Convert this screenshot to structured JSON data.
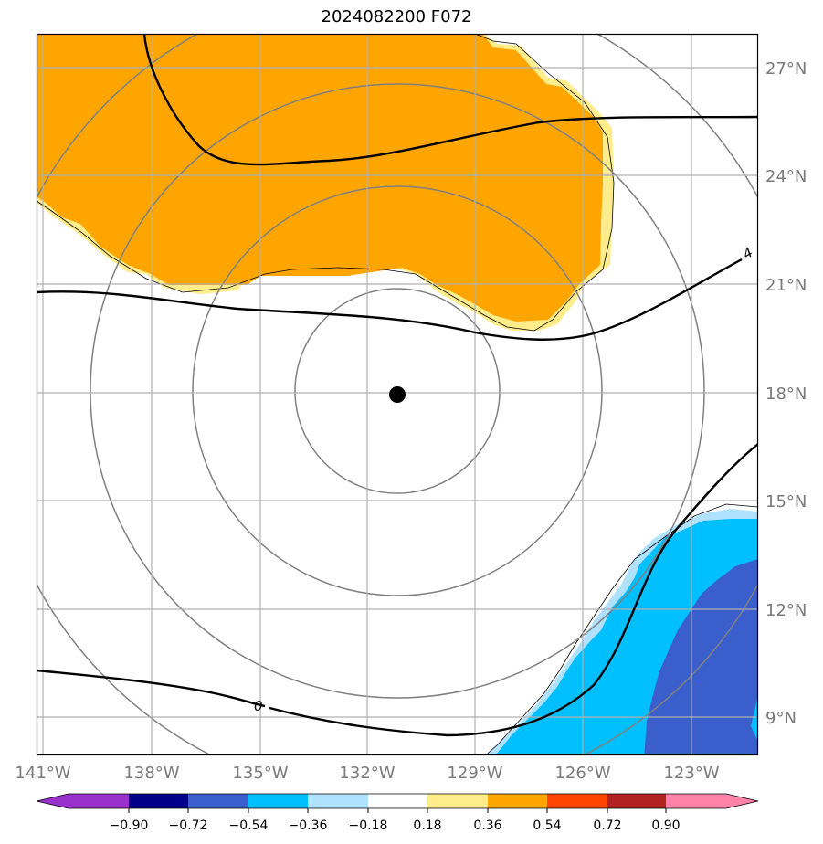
{
  "title": "2024082200 F072",
  "map": {
    "lon_labels": [
      "141°W",
      "138°W",
      "135°W",
      "132°W",
      "129°W",
      "126°W",
      "123°W"
    ],
    "lat_labels": [
      "27°N",
      "24°N",
      "21°N",
      "18°N",
      "15°N",
      "12°N",
      "9°N"
    ],
    "contour_labels": [
      "4",
      "0"
    ],
    "center_marker": {
      "lon": -131.0,
      "lat": 17.9
    },
    "range_rings": 4
  },
  "colorbar": {
    "labels": [
      "−0.90",
      "−0.72",
      "−0.54",
      "−0.36",
      "−0.18",
      "0.18",
      "0.36",
      "0.54",
      "0.72",
      "0.90"
    ],
    "colors": [
      "#9932cc",
      "#00008b",
      "#3a5fcd",
      "#00bfff",
      "#b0e2ff",
      "#ffffff",
      "#ffec8b",
      "#ffa500",
      "#ff4500",
      "#b22222",
      "#ff82ab"
    ]
  }
}
